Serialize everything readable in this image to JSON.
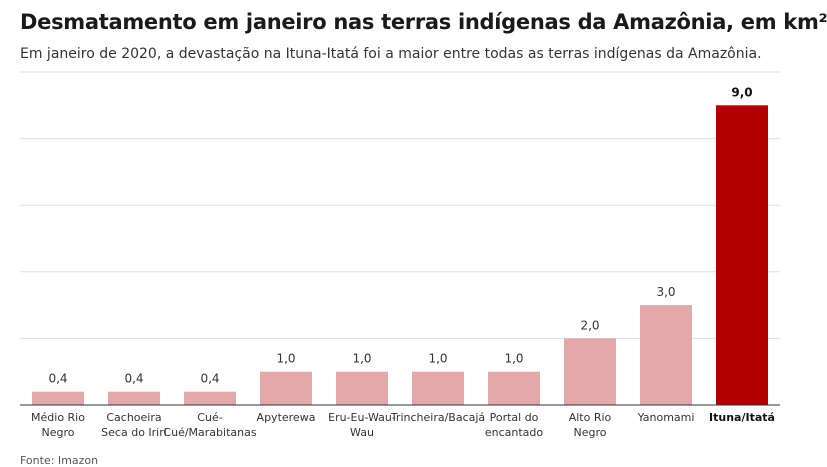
{
  "title": "Desmatamento em janeiro nas terras indígenas da Amazônia, em km²",
  "subtitle": "Em janeiro de 2020, a devastação na Ituna-Itatá foi a maior entre todas as terras indígenas da Amazônia.",
  "source": "Fonte: Imazon",
  "colors": {
    "bar": "#e2a8aa",
    "highlight": "#b30000",
    "grid": "#dddddd",
    "axis": "#333333"
  },
  "chart_data": {
    "type": "bar",
    "categories": [
      [
        "Médio Rio",
        "Negro"
      ],
      [
        "Cachoeira",
        "Seca do Iriri"
      ],
      [
        "Cué-",
        "Cué/Marabitanas"
      ],
      [
        "Apyterewa"
      ],
      [
        "Eru-Eu-Wau-",
        "Wau"
      ],
      [
        "Trincheira/Bacajá"
      ],
      [
        "Portal do",
        "encantado"
      ],
      [
        "Alto Rio",
        "Negro"
      ],
      [
        "Yanomami"
      ],
      [
        "Ituna/Itatá"
      ]
    ],
    "values": [
      0.4,
      0.4,
      0.4,
      1.0,
      1.0,
      1.0,
      1.0,
      2.0,
      3.0,
      9.0
    ],
    "labels": [
      "0,4",
      "0,4",
      "0,4",
      "1,0",
      "1,0",
      "1,0",
      "1,0",
      "2,0",
      "3,0",
      "9,0"
    ],
    "highlight_index": 9,
    "ylim": [
      0,
      10
    ],
    "grid": true,
    "gridlines": [
      0,
      2,
      4,
      6,
      8,
      10
    ]
  }
}
